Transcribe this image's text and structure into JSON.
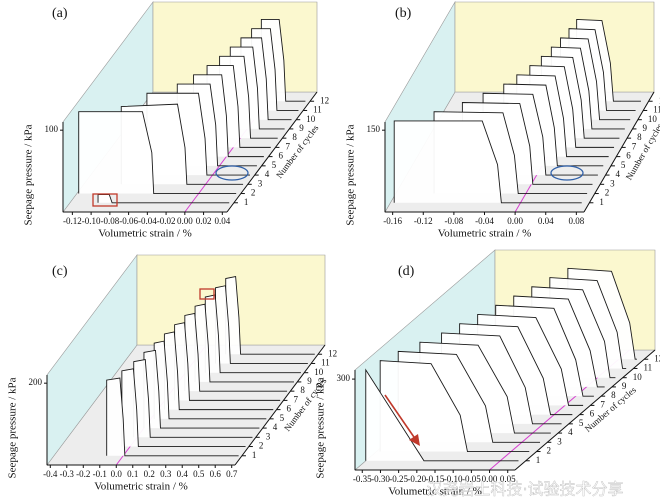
{
  "chart_data": [
    {
      "type": "waterfall3d",
      "label": "(a)",
      "x_label": "Volumetric strain / %",
      "y_label": "Number of cycles",
      "z_label": "Seepage pressure / kPa",
      "xlim": [
        -0.13,
        0.045
      ],
      "xticks": [
        -0.12,
        {
          "value": -0.1,
          "label": "-0.10"
        },
        -0.08,
        -0.06,
        -0.04,
        -0.02,
        {
          "value": 0,
          "label": "0.00"
        },
        0.02,
        0.04
      ],
      "ylim": [
        0,
        13
      ],
      "yticks": [
        1,
        2,
        3,
        4,
        5,
        6,
        7,
        8,
        9,
        10,
        11,
        12
      ],
      "zlim": [
        0,
        110
      ],
      "zticks": [
        100
      ],
      "series": [
        {
          "cycle": 1,
          "x": [
            -0.1,
            -0.1,
            -0.088,
            -0.085,
            0.04
          ],
          "values": [
            0,
            10,
            10,
            0,
            0
          ]
        },
        {
          "cycle": 2,
          "x": [
            -0.128,
            -0.128,
            -0.06,
            -0.05,
            -0.048,
            0.04
          ],
          "values": [
            0,
            100,
            100,
            50,
            0,
            0
          ]
        },
        {
          "cycle": 3,
          "x": [
            -0.09,
            -0.09,
            -0.03,
            -0.022,
            -0.02,
            0.04
          ],
          "values": [
            0,
            95,
            98,
            45,
            0,
            0
          ]
        },
        {
          "cycle": 4,
          "x": [
            -0.07,
            -0.07,
            -0.015,
            -0.008,
            -0.006,
            0.04
          ],
          "values": [
            0,
            100,
            100,
            45,
            0,
            0
          ]
        },
        {
          "cycle": 5,
          "x": [
            -0.045,
            -0.045,
            -0.01,
            -0.004,
            -0.002,
            0.04
          ],
          "values": [
            0,
            100,
            100,
            50,
            0,
            0
          ]
        },
        {
          "cycle": 6,
          "x": [
            -0.035,
            -0.035,
            -0.005,
            0,
            0.002,
            0.04
          ],
          "values": [
            0,
            100,
            100,
            50,
            0,
            0
          ]
        },
        {
          "cycle": 7,
          "x": [
            -0.028,
            -0.028,
            0,
            0.005,
            0.007,
            0.04
          ],
          "values": [
            0,
            100,
            100,
            50,
            0,
            0
          ]
        },
        {
          "cycle": 8,
          "x": [
            -0.022,
            -0.022,
            0.004,
            0.009,
            0.011,
            0.04
          ],
          "values": [
            0,
            100,
            100,
            50,
            0,
            0
          ]
        },
        {
          "cycle": 9,
          "x": [
            -0.018,
            -0.018,
            0.006,
            0.011,
            0.013,
            0.04
          ],
          "values": [
            0,
            100,
            100,
            50,
            0,
            0
          ]
        },
        {
          "cycle": 10,
          "x": [
            -0.014,
            -0.014,
            0.008,
            0.013,
            0.015,
            0.04
          ],
          "values": [
            0,
            100,
            100,
            50,
            0,
            0
          ]
        },
        {
          "cycle": 11,
          "x": [
            -0.01,
            -0.01,
            0.01,
            0.015,
            0.017,
            0.04
          ],
          "values": [
            0,
            100,
            100,
            50,
            0,
            0
          ]
        },
        {
          "cycle": 12,
          "x": [
            -0.007,
            -0.007,
            0.012,
            0.017,
            0.019,
            0.04
          ],
          "values": [
            0,
            100,
            100,
            50,
            0,
            0
          ]
        }
      ]
    },
    {
      "type": "waterfall3d",
      "label": "(b)",
      "x_label": "Volumetric strain / %",
      "y_label": "Number of cycles",
      "z_label": "Seepage pressure / kPa",
      "xlim": [
        -0.17,
        0.09
      ],
      "xticks": [
        -0.16,
        -0.12,
        -0.08,
        -0.04,
        {
          "value": 0,
          "label": "0.00"
        },
        0.04,
        0.08
      ],
      "ylim": [
        0,
        13
      ],
      "yticks": [
        1,
        2,
        3,
        4,
        5,
        6,
        7,
        8,
        9,
        10,
        11,
        12
      ],
      "zlim": [
        0,
        165
      ],
      "zticks": [
        150
      ],
      "series": [
        {
          "cycle": 1,
          "x": [
            -0.165,
            -0.165,
            -0.05,
            -0.03,
            -0.025,
            0.08
          ],
          "values": [
            0,
            150,
            150,
            70,
            0,
            0
          ]
        },
        {
          "cycle": 2,
          "x": [
            -0.12,
            -0.12,
            -0.03,
            -0.015,
            -0.01,
            0.08
          ],
          "values": [
            0,
            150,
            148,
            70,
            0,
            0
          ]
        },
        {
          "cycle": 3,
          "x": [
            -0.09,
            -0.09,
            -0.015,
            -0.002,
            0.002,
            0.08
          ],
          "values": [
            0,
            150,
            148,
            70,
            0,
            0
          ]
        },
        {
          "cycle": 4,
          "x": [
            -0.07,
            -0.07,
            -0.005,
            0.008,
            0.012,
            0.08
          ],
          "values": [
            0,
            150,
            148,
            70,
            0,
            0
          ]
        },
        {
          "cycle": 5,
          "x": [
            -0.05,
            -0.05,
            0.005,
            0.016,
            0.02,
            0.08
          ],
          "values": [
            0,
            150,
            148,
            70,
            0,
            0
          ]
        },
        {
          "cycle": 6,
          "x": [
            -0.04,
            -0.04,
            0.01,
            0.021,
            0.025,
            0.08
          ],
          "values": [
            0,
            150,
            148,
            70,
            0,
            0
          ]
        },
        {
          "cycle": 7,
          "x": [
            -0.03,
            -0.03,
            0.015,
            0.026,
            0.03,
            0.08
          ],
          "values": [
            0,
            150,
            148,
            70,
            0,
            0
          ]
        },
        {
          "cycle": 8,
          "x": [
            -0.022,
            -0.022,
            0.019,
            0.03,
            0.034,
            0.08
          ],
          "values": [
            0,
            150,
            148,
            70,
            0,
            0
          ]
        },
        {
          "cycle": 9,
          "x": [
            -0.016,
            -0.016,
            0.022,
            0.033,
            0.037,
            0.08
          ],
          "values": [
            0,
            150,
            148,
            70,
            0,
            0
          ]
        },
        {
          "cycle": 10,
          "x": [
            -0.011,
            -0.011,
            0.025,
            0.036,
            0.04,
            0.08
          ],
          "values": [
            0,
            150,
            148,
            70,
            0,
            0
          ]
        },
        {
          "cycle": 11,
          "x": [
            -0.007,
            -0.007,
            0.027,
            0.038,
            0.042,
            0.08
          ],
          "values": [
            0,
            150,
            148,
            70,
            0,
            0
          ]
        },
        {
          "cycle": 12,
          "x": [
            -0.004,
            -0.004,
            0.029,
            0.04,
            0.044,
            0.08
          ],
          "values": [
            0,
            150,
            148,
            70,
            0,
            0
          ]
        }
      ]
    },
    {
      "type": "waterfall3d",
      "label": "(c)",
      "x_label": "Volumetric strain / %",
      "y_label": "Number of cycles",
      "z_label": "Seepage pressure / kPa",
      "xlim": [
        -0.42,
        0.72
      ],
      "xticks": [
        -0.4,
        -0.3,
        -0.2,
        -0.1,
        {
          "value": 0,
          "label": "0.0"
        },
        0.1,
        0.2,
        0.3,
        0.4,
        0.5,
        0.6,
        0.7
      ],
      "ylim": [
        0,
        13
      ],
      "yticks": [
        1,
        2,
        3,
        4,
        5,
        6,
        7,
        8,
        9,
        10,
        11,
        12
      ],
      "zlim": [
        0,
        220
      ],
      "zticks": [
        200
      ],
      "series": [
        {
          "cycle": 1,
          "x": [
            -0.1,
            -0.1,
            -0.02,
            0,
            0.01,
            0.7
          ],
          "values": [
            0,
            185,
            190,
            90,
            0,
            0
          ]
        },
        {
          "cycle": 2,
          "x": [
            -0.05,
            -0.05,
            0.02,
            0.04,
            0.05,
            0.7
          ],
          "values": [
            0,
            185,
            190,
            90,
            0,
            0
          ]
        },
        {
          "cycle": 3,
          "x": [
            -0.02,
            -0.02,
            0.05,
            0.07,
            0.08,
            0.7
          ],
          "values": [
            0,
            185,
            190,
            90,
            0,
            0
          ]
        },
        {
          "cycle": 4,
          "x": [
            0,
            0,
            0.07,
            0.09,
            0.1,
            0.7
          ],
          "values": [
            0,
            185,
            190,
            90,
            0,
            0
          ]
        },
        {
          "cycle": 5,
          "x": [
            0.02,
            0.02,
            0.08,
            0.1,
            0.11,
            0.7
          ],
          "values": [
            0,
            185,
            190,
            90,
            0,
            0
          ]
        },
        {
          "cycle": 6,
          "x": [
            0.04,
            0.04,
            0.1,
            0.12,
            0.13,
            0.7
          ],
          "values": [
            0,
            185,
            190,
            90,
            0,
            0
          ]
        },
        {
          "cycle": 7,
          "x": [
            0.06,
            0.06,
            0.12,
            0.14,
            0.15,
            0.7
          ],
          "values": [
            0,
            185,
            190,
            90,
            0,
            0
          ]
        },
        {
          "cycle": 8,
          "x": [
            0.08,
            0.08,
            0.14,
            0.16,
            0.17,
            0.7
          ],
          "values": [
            0,
            185,
            190,
            90,
            0,
            0
          ]
        },
        {
          "cycle": 9,
          "x": [
            0.1,
            0.1,
            0.16,
            0.18,
            0.19,
            0.7
          ],
          "values": [
            0,
            185,
            190,
            90,
            0,
            0
          ]
        },
        {
          "cycle": 10,
          "x": [
            0.12,
            0.12,
            0.18,
            0.2,
            0.21,
            0.7
          ],
          "values": [
            0,
            185,
            190,
            90,
            0,
            0
          ]
        },
        {
          "cycle": 11,
          "x": [
            0.14,
            0.14,
            0.2,
            0.22,
            0.23,
            0.7
          ],
          "values": [
            0,
            185,
            190,
            90,
            0,
            0
          ]
        },
        {
          "cycle": 12,
          "x": [
            0.16,
            0.16,
            0.22,
            0.24,
            0.25,
            0.7
          ],
          "values": [
            0,
            185,
            190,
            90,
            0,
            0
          ]
        }
      ]
    },
    {
      "type": "waterfall3d",
      "label": "(d)",
      "x_label": "Volumetric strain / %",
      "y_label": "Number of cycles",
      "z_label": "Seepage pressure / kPa",
      "xlim": [
        -0.37,
        0.07
      ],
      "xticks": [
        -0.35,
        {
          "value": -0.3,
          "label": "-0.30"
        },
        -0.25,
        {
          "value": -0.2,
          "label": "-0.20"
        },
        -0.15,
        {
          "value": -0.1,
          "label": "-0.10"
        },
        -0.05,
        {
          "value": 0,
          "label": "0.00"
        },
        0.05
      ],
      "ylim": [
        0,
        13
      ],
      "yticks": [
        1,
        2,
        3,
        4,
        5,
        6,
        7,
        8,
        9,
        10,
        11,
        12
      ],
      "zlim": [
        0,
        330
      ],
      "zticks": [
        300
      ],
      "series": [
        {
          "cycle": 1,
          "x": [
            -0.37,
            -0.37,
            -0.21,
            0.05
          ],
          "values": [
            0,
            300,
            0,
            0
          ]
        },
        {
          "cycle": 2,
          "x": [
            -0.36,
            -0.36,
            -0.22,
            -0.14,
            -0.12,
            0.05
          ],
          "values": [
            0,
            300,
            290,
            120,
            0,
            0
          ]
        },
        {
          "cycle": 3,
          "x": [
            -0.34,
            -0.34,
            -0.18,
            -0.1,
            -0.08,
            0.05
          ],
          "values": [
            0,
            300,
            290,
            120,
            0,
            0
          ]
        },
        {
          "cycle": 4,
          "x": [
            -0.31,
            -0.31,
            -0.15,
            -0.07,
            -0.05,
            0.05
          ],
          "values": [
            0,
            300,
            290,
            120,
            0,
            0
          ]
        },
        {
          "cycle": 5,
          "x": [
            -0.28,
            -0.28,
            -0.12,
            -0.05,
            -0.03,
            0.05
          ],
          "values": [
            0,
            300,
            290,
            120,
            0,
            0
          ]
        },
        {
          "cycle": 6,
          "x": [
            -0.26,
            -0.26,
            -0.1,
            -0.03,
            -0.01,
            0.05
          ],
          "values": [
            0,
            300,
            290,
            120,
            0,
            0
          ]
        },
        {
          "cycle": 7,
          "x": [
            -0.24,
            -0.24,
            -0.08,
            -0.01,
            0.01,
            0.05
          ],
          "values": [
            0,
            300,
            290,
            120,
            0,
            0
          ]
        },
        {
          "cycle": 8,
          "x": [
            -0.22,
            -0.22,
            -0.06,
            0,
            0.02,
            0.05
          ],
          "values": [
            0,
            300,
            290,
            120,
            0,
            0
          ]
        },
        {
          "cycle": 9,
          "x": [
            -0.2,
            -0.2,
            -0.05,
            0.01,
            0.03,
            0.05
          ],
          "values": [
            0,
            300,
            290,
            120,
            0,
            0
          ]
        },
        {
          "cycle": 10,
          "x": [
            -0.18,
            -0.18,
            -0.04,
            0.02,
            0.035,
            0.05
          ],
          "values": [
            0,
            300,
            290,
            120,
            0,
            0
          ]
        },
        {
          "cycle": 11,
          "x": [
            -0.16,
            -0.16,
            -0.03,
            0.025,
            0.04,
            0.05
          ],
          "values": [
            0,
            300,
            290,
            120,
            0,
            0
          ]
        },
        {
          "cycle": 12,
          "x": [
            -0.14,
            -0.14,
            -0.02,
            0.03,
            0.045,
            0.05
          ],
          "values": [
            0,
            300,
            290,
            120,
            0,
            0
          ]
        }
      ]
    }
  ],
  "watermark": "汉尧岩土科技·试验技术分享"
}
